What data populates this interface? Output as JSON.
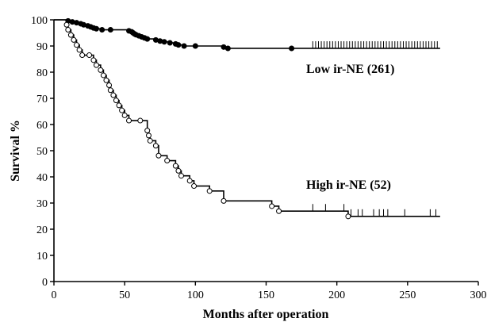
{
  "chart_data": {
    "type": "line",
    "subtype": "kaplan-meier step curve",
    "title": "",
    "xlabel": "Months after operation",
    "ylabel": "Survival %",
    "xlim": [
      0,
      300
    ],
    "ylim": [
      0,
      100
    ],
    "xticks": [
      0,
      50,
      100,
      150,
      200,
      250,
      300
    ],
    "yticks": [
      0,
      10,
      20,
      30,
      40,
      50,
      60,
      70,
      80,
      90,
      100
    ],
    "grid": false,
    "legend": "none (series labels placed inline beside curves)",
    "series": [
      {
        "name": "Low ir-NE (261)",
        "marker": "filled circle",
        "color": "#000000",
        "steps": [
          [
            0,
            100
          ],
          [
            10,
            99.6
          ],
          [
            13,
            99.2
          ],
          [
            16,
            98.9
          ],
          [
            19,
            98.5
          ],
          [
            21,
            98.1
          ],
          [
            24,
            97.7
          ],
          [
            26,
            97.3
          ],
          [
            28,
            96.9
          ],
          [
            30,
            96.6
          ],
          [
            34,
            96.2
          ],
          [
            40,
            96.2
          ],
          [
            53,
            95.8
          ],
          [
            55,
            95.4
          ],
          [
            56,
            95.0
          ],
          [
            57,
            94.6
          ],
          [
            58,
            94.3
          ],
          [
            60,
            93.9
          ],
          [
            62,
            93.5
          ],
          [
            64,
            93.1
          ],
          [
            66,
            92.7
          ],
          [
            72,
            92.3
          ],
          [
            75,
            91.9
          ],
          [
            78,
            91.6
          ],
          [
            82,
            91.2
          ],
          [
            86,
            90.8
          ],
          [
            88,
            90.4
          ],
          [
            92,
            90.0
          ],
          [
            100,
            90.0
          ],
          [
            120,
            89.6
          ],
          [
            123,
            89.1
          ],
          [
            168,
            89.1
          ],
          [
            273,
            89.1
          ]
        ],
        "events": [
          [
            10,
            99.6
          ],
          [
            13,
            99.2
          ],
          [
            16,
            98.9
          ],
          [
            19,
            98.5
          ],
          [
            21,
            98.1
          ],
          [
            24,
            97.7
          ],
          [
            26,
            97.3
          ],
          [
            28,
            96.9
          ],
          [
            30,
            96.6
          ],
          [
            34,
            96.2
          ],
          [
            40,
            96.2
          ],
          [
            53,
            95.8
          ],
          [
            55,
            95.4
          ],
          [
            56,
            95.0
          ],
          [
            57,
            94.6
          ],
          [
            58,
            94.3
          ],
          [
            60,
            93.9
          ],
          [
            62,
            93.5
          ],
          [
            64,
            93.1
          ],
          [
            66,
            92.7
          ],
          [
            72,
            92.3
          ],
          [
            75,
            91.9
          ],
          [
            78,
            91.6
          ],
          [
            82,
            91.2
          ],
          [
            86,
            90.8
          ],
          [
            88,
            90.4
          ],
          [
            92,
            90.0
          ],
          [
            100,
            90.0
          ],
          [
            120,
            89.6
          ],
          [
            123,
            89.1
          ],
          [
            168,
            89.1
          ]
        ],
        "censored": [
          183,
          185,
          187,
          189,
          191,
          193,
          195,
          197,
          199,
          201,
          203,
          205,
          207,
          209,
          211,
          213,
          215,
          217,
          219,
          221,
          223,
          225,
          227,
          229,
          231,
          233,
          235,
          237,
          239,
          241,
          243,
          245,
          247,
          249,
          251,
          253,
          255,
          257,
          259,
          261,
          263,
          265,
          267,
          269,
          271
        ],
        "end_x": 273
      },
      {
        "name": "High ir-NE (52)",
        "marker": "open circle",
        "color": "#000000",
        "steps": [
          [
            0,
            100
          ],
          [
            9,
            98.1
          ],
          [
            10,
            96.2
          ],
          [
            12,
            94.2
          ],
          [
            14,
            92.3
          ],
          [
            16,
            90.4
          ],
          [
            18,
            88.5
          ],
          [
            20,
            86.5
          ],
          [
            25,
            86.5
          ],
          [
            28,
            84.6
          ],
          [
            30,
            82.7
          ],
          [
            33,
            80.8
          ],
          [
            35,
            78.8
          ],
          [
            37,
            76.9
          ],
          [
            39,
            75.0
          ],
          [
            40,
            73.1
          ],
          [
            42,
            71.2
          ],
          [
            44,
            69.2
          ],
          [
            46,
            67.3
          ],
          [
            48,
            65.4
          ],
          [
            50,
            63.5
          ],
          [
            53,
            61.5
          ],
          [
            61,
            61.5
          ],
          [
            66,
            57.7
          ],
          [
            67,
            55.8
          ],
          [
            68,
            53.8
          ],
          [
            72,
            51.9
          ],
          [
            74,
            48.1
          ],
          [
            80,
            46.2
          ],
          [
            86,
            44.2
          ],
          [
            88,
            42.3
          ],
          [
            90,
            40.4
          ],
          [
            96,
            38.5
          ],
          [
            99,
            36.5
          ],
          [
            110,
            34.6
          ],
          [
            120,
            30.8
          ],
          [
            154,
            28.8
          ],
          [
            159,
            26.9
          ],
          [
            208,
            24.9
          ],
          [
            273,
            24.9
          ]
        ],
        "events": [
          [
            9,
            98.1
          ],
          [
            10,
            96.2
          ],
          [
            12,
            94.2
          ],
          [
            14,
            92.3
          ],
          [
            16,
            90.4
          ],
          [
            18,
            88.5
          ],
          [
            20,
            86.5
          ],
          [
            25,
            86.5
          ],
          [
            28,
            84.6
          ],
          [
            30,
            82.7
          ],
          [
            33,
            80.8
          ],
          [
            35,
            78.8
          ],
          [
            37,
            76.9
          ],
          [
            39,
            75.0
          ],
          [
            40,
            73.1
          ],
          [
            42,
            71.2
          ],
          [
            44,
            69.2
          ],
          [
            46,
            67.3
          ],
          [
            48,
            65.4
          ],
          [
            50,
            63.5
          ],
          [
            53,
            61.5
          ],
          [
            61,
            61.5
          ],
          [
            66,
            57.7
          ],
          [
            67,
            55.8
          ],
          [
            68,
            53.8
          ],
          [
            72,
            51.9
          ],
          [
            74,
            48.1
          ],
          [
            80,
            46.2
          ],
          [
            86,
            44.2
          ],
          [
            88,
            42.3
          ],
          [
            90,
            40.4
          ],
          [
            96,
            38.5
          ],
          [
            99,
            36.5
          ],
          [
            110,
            34.6
          ],
          [
            120,
            30.8
          ],
          [
            154,
            28.8
          ],
          [
            159,
            26.9
          ],
          [
            208,
            24.9
          ]
        ],
        "censored": [
          183,
          192,
          205,
          210,
          215,
          218,
          226,
          230,
          233,
          236,
          248,
          266,
          270
        ],
        "end_x": 273
      }
    ]
  },
  "labels": {
    "low": "Low ir-NE (261)",
    "high": "High ir-NE (52)"
  }
}
